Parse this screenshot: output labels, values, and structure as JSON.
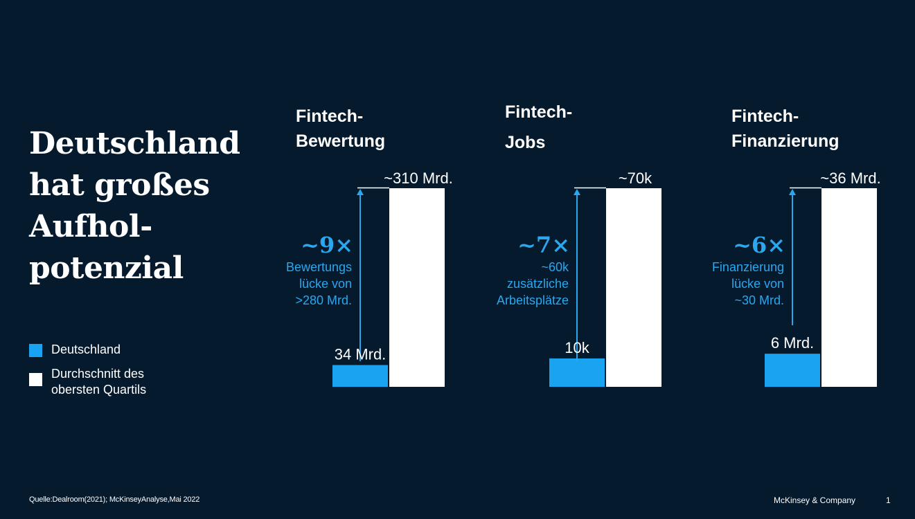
{
  "headline": [
    "Deutschland",
    "hat großes",
    "Aufhol-",
    "potenzial"
  ],
  "legend": [
    {
      "label": [
        "Deutschland"
      ],
      "color": "#1aa3f0"
    },
    {
      "label": [
        "Durchschnitt des",
        "obersten Quartils"
      ],
      "color": "#ffffff"
    }
  ],
  "colors": {
    "background": "#061a2e",
    "germany": "#1aa3f0",
    "top_quartile": "#ffffff",
    "accent_text": "#2aa7ee"
  },
  "chart_data": [
    {
      "type": "bar",
      "title": [
        "Fintech-",
        "Bewertung"
      ],
      "categories": [
        "Deutschland",
        "Durchschnitt des obersten Quartils"
      ],
      "values": [
        34,
        310
      ],
      "unit": "Mrd.",
      "value_labels": [
        "34 Mrd.",
        "~310 Mrd."
      ],
      "multiplier": "~9×",
      "gap_label": [
        "Bewertungs",
        "lücke von",
        ">280 Mrd."
      ]
    },
    {
      "type": "bar",
      "title": [
        "Fintech-",
        "Jobs"
      ],
      "categories": [
        "Deutschland",
        "Durchschnitt des obersten Quartils"
      ],
      "values": [
        10000,
        70000
      ],
      "unit": "",
      "value_labels": [
        "10k",
        "~70k"
      ],
      "multiplier": "~7×",
      "gap_label": [
        "~60k",
        "zusätzliche",
        "Arbeitsplätze"
      ]
    },
    {
      "type": "bar",
      "title": [
        "Fintech-",
        "Finanzierung"
      ],
      "categories": [
        "Deutschland",
        "Durchschnitt des obersten Quartils"
      ],
      "values": [
        6,
        36
      ],
      "unit": "Mrd.",
      "value_labels": [
        "6 Mrd.",
        "~36 Mrd."
      ],
      "multiplier": "~6×",
      "gap_label": [
        "Finanzierung",
        "lücke von",
        "~30 Mrd."
      ]
    }
  ],
  "footer": {
    "source": "Quelle:Dealroom(2021); McKinseyAnalyse,Mai 2022",
    "brand": "McKinsey & Company",
    "page": "1"
  }
}
